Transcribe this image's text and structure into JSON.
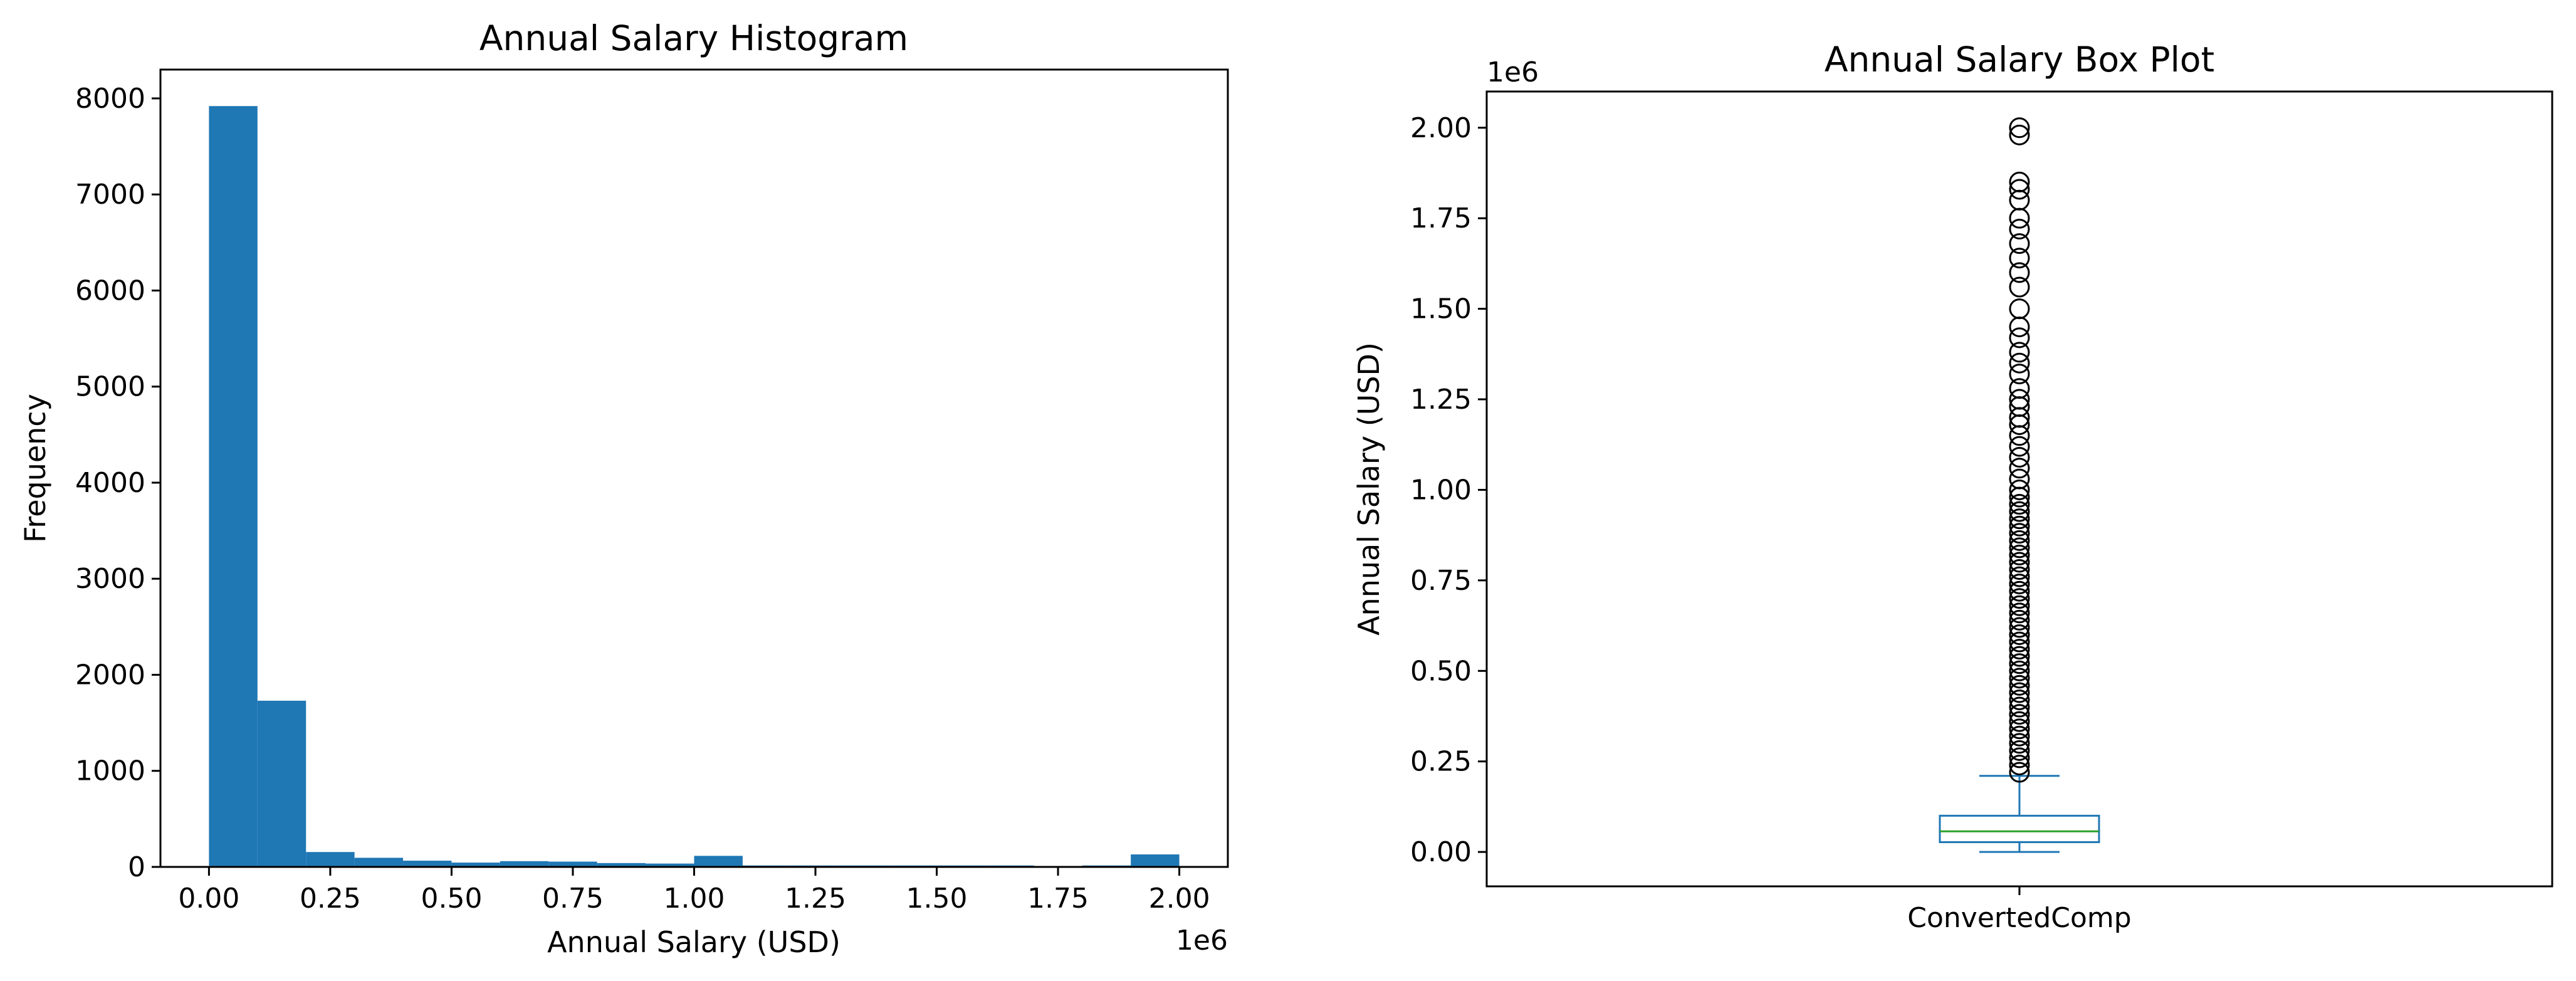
{
  "chart_data": [
    {
      "type": "bar",
      "title": "Annual Salary Histogram",
      "xlabel": "Annual Salary (USD)",
      "ylabel": "Frequency",
      "x_offset_label": "1e6",
      "xlim": [
        -0.1,
        2.1
      ],
      "ylim": [
        0,
        8300
      ],
      "xticks": [
        0.0,
        0.25,
        0.5,
        0.75,
        1.0,
        1.25,
        1.5,
        1.75,
        2.0
      ],
      "xtick_labels": [
        "0.00",
        "0.25",
        "0.50",
        "0.75",
        "1.00",
        "1.25",
        "1.50",
        "1.75",
        "2.00"
      ],
      "yticks": [
        0,
        1000,
        2000,
        3000,
        4000,
        5000,
        6000,
        7000,
        8000
      ],
      "ytick_labels": [
        "0",
        "1000",
        "2000",
        "3000",
        "4000",
        "5000",
        "6000",
        "7000",
        "8000"
      ],
      "bin_edges": [
        0.0,
        0.1,
        0.2,
        0.3,
        0.4,
        0.5,
        0.6,
        0.7,
        0.8,
        0.9,
        1.0,
        1.1,
        1.2,
        1.3,
        1.4,
        1.5,
        1.6,
        1.7,
        1.8,
        1.9,
        2.0
      ],
      "values": [
        7920,
        1730,
        155,
        95,
        65,
        45,
        60,
        55,
        40,
        35,
        115,
        15,
        15,
        15,
        15,
        15,
        15,
        5,
        15,
        130
      ],
      "bar_color": "#1f77b4",
      "grid": false
    },
    {
      "type": "box",
      "title": "Annual Salary Box Plot",
      "xlabel": "",
      "ylabel": "Annual Salary (USD)",
      "y_offset_label": "1e6",
      "ylim": [
        -0.095,
        2.1
      ],
      "yticks": [
        0.0,
        0.25,
        0.5,
        0.75,
        1.0,
        1.25,
        1.5,
        1.75,
        2.0
      ],
      "ytick_labels": [
        "0.00",
        "0.25",
        "0.50",
        "0.75",
        "1.00",
        "1.25",
        "1.50",
        "1.75",
        "2.00"
      ],
      "categories": [
        "ConvertedComp"
      ],
      "box": {
        "whisker_low": 0.0,
        "q1": 0.027,
        "median": 0.057,
        "q3": 0.1,
        "whisker_high": 0.21
      },
      "outliers": [
        0.22,
        0.24,
        0.26,
        0.28,
        0.3,
        0.32,
        0.34,
        0.36,
        0.38,
        0.4,
        0.42,
        0.44,
        0.46,
        0.48,
        0.5,
        0.52,
        0.54,
        0.56,
        0.58,
        0.6,
        0.62,
        0.64,
        0.66,
        0.68,
        0.7,
        0.72,
        0.74,
        0.76,
        0.78,
        0.8,
        0.82,
        0.84,
        0.86,
        0.88,
        0.9,
        0.92,
        0.94,
        0.96,
        0.98,
        1.0,
        1.03,
        1.06,
        1.09,
        1.12,
        1.15,
        1.18,
        1.2,
        1.23,
        1.25,
        1.28,
        1.32,
        1.35,
        1.38,
        1.42,
        1.45,
        1.5,
        1.56,
        1.6,
        1.64,
        1.68,
        1.72,
        1.75,
        1.8,
        1.83,
        1.85,
        1.98,
        2.0
      ],
      "box_color": "#1f77b4",
      "median_color": "#2ca02c",
      "grid": false
    }
  ]
}
